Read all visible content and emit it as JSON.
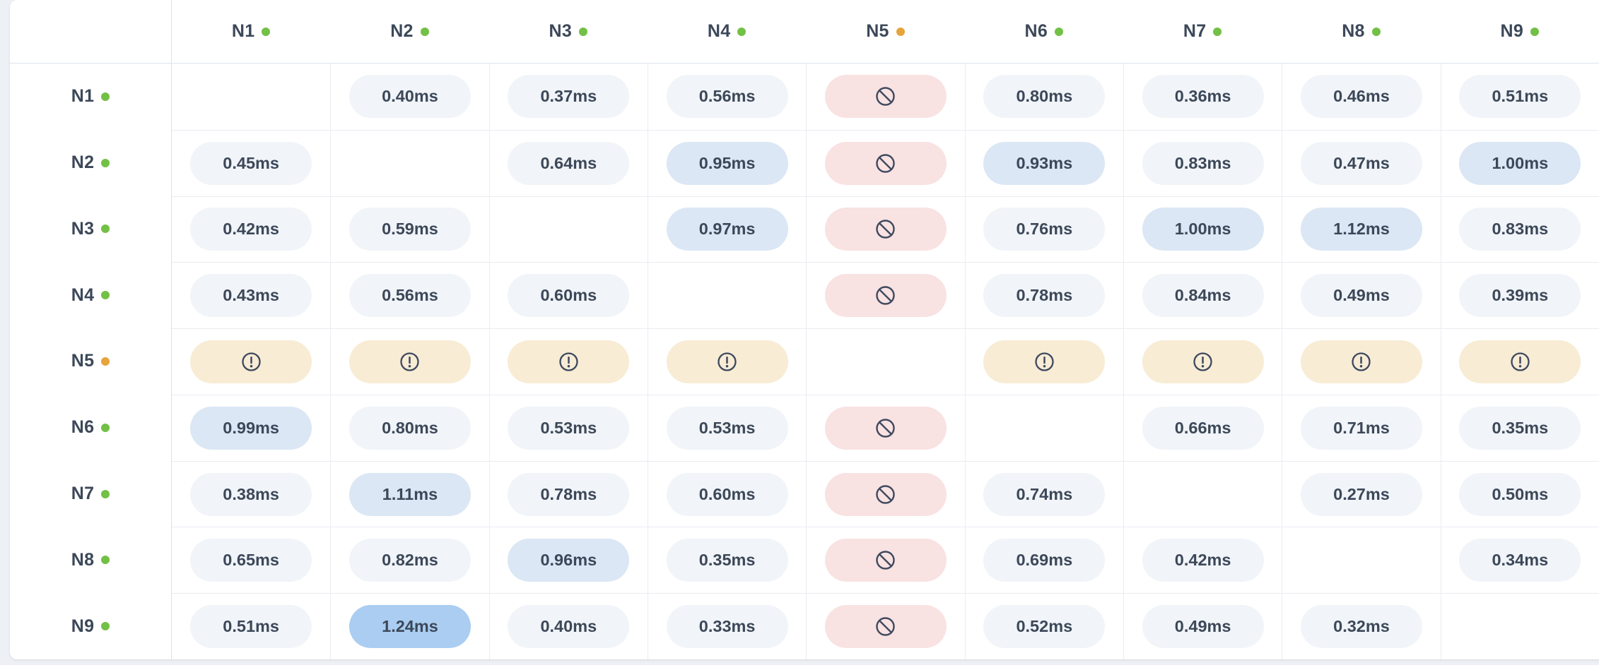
{
  "widget": {
    "title": "node-latency-matrix"
  },
  "colors": {
    "page_bg": "#edf0f4",
    "card_bg": "#ffffff",
    "text": "#3c4859",
    "grid_strong": "#dde2ea",
    "grid_line": "#e9ecf2",
    "dot_healthy": "#72c045",
    "dot_warning": "#e7a43c",
    "pill_normal": "#f1f4f8",
    "pill_elevated": "#dbe7f4",
    "pill_high": "#aacdf1",
    "pill_blocked": "#f9e2e2",
    "pill_warning": "#f8ecd5",
    "icon": "#3f4a5f"
  },
  "icons": {
    "blocked": "no-entry-icon",
    "warning": "alert-circle-icon",
    "status_dot": "status-dot"
  },
  "table": {
    "corner_label": "",
    "columns": [
      {
        "label": "N1",
        "status": "healthy"
      },
      {
        "label": "N2",
        "status": "healthy"
      },
      {
        "label": "N3",
        "status": "healthy"
      },
      {
        "label": "N4",
        "status": "healthy"
      },
      {
        "label": "N5",
        "status": "warning"
      },
      {
        "label": "N6",
        "status": "healthy"
      },
      {
        "label": "N7",
        "status": "healthy"
      },
      {
        "label": "N8",
        "status": "healthy"
      },
      {
        "label": "N9",
        "status": "healthy"
      }
    ],
    "rows": [
      {
        "label": "N1",
        "status": "healthy",
        "cells": [
          {
            "type": "self"
          },
          {
            "type": "latency",
            "value": "0.40ms",
            "tone": "normal"
          },
          {
            "type": "latency",
            "value": "0.37ms",
            "tone": "normal"
          },
          {
            "type": "latency",
            "value": "0.56ms",
            "tone": "normal"
          },
          {
            "type": "blocked"
          },
          {
            "type": "latency",
            "value": "0.80ms",
            "tone": "normal"
          },
          {
            "type": "latency",
            "value": "0.36ms",
            "tone": "normal"
          },
          {
            "type": "latency",
            "value": "0.46ms",
            "tone": "normal"
          },
          {
            "type": "latency",
            "value": "0.51ms",
            "tone": "normal"
          }
        ]
      },
      {
        "label": "N2",
        "status": "healthy",
        "cells": [
          {
            "type": "latency",
            "value": "0.45ms",
            "tone": "normal"
          },
          {
            "type": "self"
          },
          {
            "type": "latency",
            "value": "0.64ms",
            "tone": "normal"
          },
          {
            "type": "latency",
            "value": "0.95ms",
            "tone": "elevated"
          },
          {
            "type": "blocked"
          },
          {
            "type": "latency",
            "value": "0.93ms",
            "tone": "elevated"
          },
          {
            "type": "latency",
            "value": "0.83ms",
            "tone": "normal"
          },
          {
            "type": "latency",
            "value": "0.47ms",
            "tone": "normal"
          },
          {
            "type": "latency",
            "value": "1.00ms",
            "tone": "elevated"
          }
        ]
      },
      {
        "label": "N3",
        "status": "healthy",
        "cells": [
          {
            "type": "latency",
            "value": "0.42ms",
            "tone": "normal"
          },
          {
            "type": "latency",
            "value": "0.59ms",
            "tone": "normal"
          },
          {
            "type": "self"
          },
          {
            "type": "latency",
            "value": "0.97ms",
            "tone": "elevated"
          },
          {
            "type": "blocked"
          },
          {
            "type": "latency",
            "value": "0.76ms",
            "tone": "normal"
          },
          {
            "type": "latency",
            "value": "1.00ms",
            "tone": "elevated"
          },
          {
            "type": "latency",
            "value": "1.12ms",
            "tone": "elevated"
          },
          {
            "type": "latency",
            "value": "0.83ms",
            "tone": "normal"
          }
        ]
      },
      {
        "label": "N4",
        "status": "healthy",
        "cells": [
          {
            "type": "latency",
            "value": "0.43ms",
            "tone": "normal"
          },
          {
            "type": "latency",
            "value": "0.56ms",
            "tone": "normal"
          },
          {
            "type": "latency",
            "value": "0.60ms",
            "tone": "normal"
          },
          {
            "type": "self"
          },
          {
            "type": "blocked"
          },
          {
            "type": "latency",
            "value": "0.78ms",
            "tone": "normal"
          },
          {
            "type": "latency",
            "value": "0.84ms",
            "tone": "normal"
          },
          {
            "type": "latency",
            "value": "0.49ms",
            "tone": "normal"
          },
          {
            "type": "latency",
            "value": "0.39ms",
            "tone": "normal"
          }
        ]
      },
      {
        "label": "N5",
        "status": "warning",
        "cells": [
          {
            "type": "warning"
          },
          {
            "type": "warning"
          },
          {
            "type": "warning"
          },
          {
            "type": "warning"
          },
          {
            "type": "self"
          },
          {
            "type": "warning"
          },
          {
            "type": "warning"
          },
          {
            "type": "warning"
          },
          {
            "type": "warning"
          }
        ]
      },
      {
        "label": "N6",
        "status": "healthy",
        "cells": [
          {
            "type": "latency",
            "value": "0.99ms",
            "tone": "elevated"
          },
          {
            "type": "latency",
            "value": "0.80ms",
            "tone": "normal"
          },
          {
            "type": "latency",
            "value": "0.53ms",
            "tone": "normal"
          },
          {
            "type": "latency",
            "value": "0.53ms",
            "tone": "normal"
          },
          {
            "type": "blocked"
          },
          {
            "type": "self"
          },
          {
            "type": "latency",
            "value": "0.66ms",
            "tone": "normal"
          },
          {
            "type": "latency",
            "value": "0.71ms",
            "tone": "normal"
          },
          {
            "type": "latency",
            "value": "0.35ms",
            "tone": "normal"
          }
        ]
      },
      {
        "label": "N7",
        "status": "healthy",
        "cells": [
          {
            "type": "latency",
            "value": "0.38ms",
            "tone": "normal"
          },
          {
            "type": "latency",
            "value": "1.11ms",
            "tone": "elevated"
          },
          {
            "type": "latency",
            "value": "0.78ms",
            "tone": "normal"
          },
          {
            "type": "latency",
            "value": "0.60ms",
            "tone": "normal"
          },
          {
            "type": "blocked"
          },
          {
            "type": "latency",
            "value": "0.74ms",
            "tone": "normal"
          },
          {
            "type": "self"
          },
          {
            "type": "latency",
            "value": "0.27ms",
            "tone": "normal"
          },
          {
            "type": "latency",
            "value": "0.50ms",
            "tone": "normal"
          }
        ]
      },
      {
        "label": "N8",
        "status": "healthy",
        "cells": [
          {
            "type": "latency",
            "value": "0.65ms",
            "tone": "normal"
          },
          {
            "type": "latency",
            "value": "0.82ms",
            "tone": "normal"
          },
          {
            "type": "latency",
            "value": "0.96ms",
            "tone": "elevated"
          },
          {
            "type": "latency",
            "value": "0.35ms",
            "tone": "normal"
          },
          {
            "type": "blocked"
          },
          {
            "type": "latency",
            "value": "0.69ms",
            "tone": "normal"
          },
          {
            "type": "latency",
            "value": "0.42ms",
            "tone": "normal"
          },
          {
            "type": "self"
          },
          {
            "type": "latency",
            "value": "0.34ms",
            "tone": "normal"
          }
        ]
      },
      {
        "label": "N9",
        "status": "healthy",
        "cells": [
          {
            "type": "latency",
            "value": "0.51ms",
            "tone": "normal"
          },
          {
            "type": "latency",
            "value": "1.24ms",
            "tone": "high"
          },
          {
            "type": "latency",
            "value": "0.40ms",
            "tone": "normal"
          },
          {
            "type": "latency",
            "value": "0.33ms",
            "tone": "normal"
          },
          {
            "type": "blocked"
          },
          {
            "type": "latency",
            "value": "0.52ms",
            "tone": "normal"
          },
          {
            "type": "latency",
            "value": "0.49ms",
            "tone": "normal"
          },
          {
            "type": "latency",
            "value": "0.32ms",
            "tone": "normal"
          },
          {
            "type": "self"
          }
        ]
      }
    ]
  }
}
